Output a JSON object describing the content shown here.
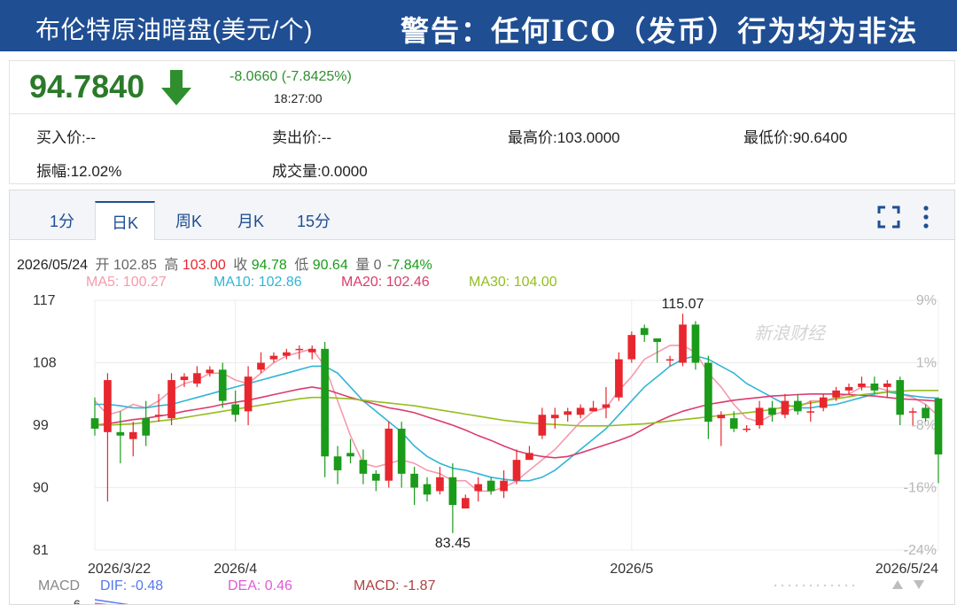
{
  "banner": {
    "title": "布伦特原油暗盘(美元/个)",
    "warning": "警告：任何ICO（发币）行为均为非法"
  },
  "quote": {
    "price": "94.7840",
    "change": "-8.0660 (-7.8425%)",
    "time": "18:27:00",
    "trend_icon": "arrow-down-icon"
  },
  "stats": {
    "bid": "买入价:--",
    "ask": "卖出价:--",
    "high": "最高价:103.0000",
    "low": "最低价:90.6400",
    "amplitude": "振幅:12.02%",
    "volume": "成交量:0.0000"
  },
  "tabs": [
    {
      "label": "1分"
    },
    {
      "label": "日K"
    },
    {
      "label": "周K"
    },
    {
      "label": "月K"
    },
    {
      "label": "15分"
    }
  ],
  "active_tab": "日K",
  "info": {
    "date": "2026/05/24",
    "open_label": "开",
    "open": "102.85",
    "high_label": "高",
    "high": "103.00",
    "close_label": "收",
    "close": "94.78",
    "low_label": "低",
    "low": "90.64",
    "vol_label": "量",
    "vol": "0",
    "pct": "-7.84%"
  },
  "ma": {
    "ma5": "MA5: 100.27",
    "ma10": "MA10: 102.86",
    "ma20": "MA20: 102.46",
    "ma30": "MA30: 104.00"
  },
  "macd": {
    "label": "MACD",
    "dif": "DIF: -0.48",
    "dea": "DEA: 0.46",
    "macd": "MACD: -1.87",
    "axis_top": "6"
  },
  "watermark": "新浪财经",
  "colors": {
    "up": "#e8262e",
    "down": "#1a9b1a",
    "ma5": "#f59aac",
    "ma10": "#31b5d6",
    "ma20": "#dd3b6c",
    "ma30": "#95bd1e",
    "accent": "#1f4e93"
  },
  "chart_data": {
    "type": "candlestick",
    "y_left_ticks": [
      "117",
      "108",
      "99",
      "90",
      "81"
    ],
    "y_left_values": [
      117,
      108,
      99,
      90,
      81
    ],
    "ylim": [
      81,
      117
    ],
    "y_right_ticks": [
      "9%",
      "1%",
      "-8%",
      "-16%",
      "-24%"
    ],
    "x_ticks": [
      {
        "label": "2026/3/22",
        "index": 0
      },
      {
        "label": "2026/4",
        "index": 11
      },
      {
        "label": "2026/5",
        "index": 42
      },
      {
        "label": "2026/5/24",
        "index": 66
      }
    ],
    "annotations": [
      {
        "text": "115.07",
        "index": 46,
        "value": 115.07
      },
      {
        "text": "83.45",
        "index": 28,
        "value": 83.45
      }
    ],
    "candles": [
      [
        100.0,
        98.5,
        103.0,
        97.5
      ],
      [
        98.0,
        105.5,
        106.5,
        88.0
      ],
      [
        98.0,
        97.5,
        101.0,
        93.5
      ],
      [
        97.0,
        98.0,
        99.5,
        94.5
      ],
      [
        100.0,
        97.5,
        102.5,
        96.0
      ],
      [
        100.5,
        100.5,
        103.5,
        99.5
      ],
      [
        100.0,
        105.5,
        106.5,
        99.0
      ],
      [
        105.5,
        106.0,
        106.5,
        104.5
      ],
      [
        105.0,
        106.5,
        107.5,
        104.5
      ],
      [
        106.5,
        107.0,
        107.5,
        106.0
      ],
      [
        107.0,
        102.5,
        108.0,
        101.5
      ],
      [
        102.0,
        100.5,
        104.0,
        99.5
      ],
      [
        101.0,
        106.0,
        107.5,
        99.0
      ],
      [
        107.0,
        108.0,
        109.5,
        106.5
      ],
      [
        108.5,
        109.0,
        109.5,
        108.0
      ],
      [
        109.0,
        109.5,
        110.0,
        108.5
      ],
      [
        110.0,
        110.0,
        110.5,
        108.5
      ],
      [
        109.5,
        110.0,
        110.5,
        108.5
      ],
      [
        110.0,
        94.5,
        111.0,
        91.5
      ],
      [
        94.5,
        92.5,
        96.0,
        90.5
      ],
      [
        95.0,
        94.5,
        97.0,
        93.5
      ],
      [
        94.0,
        92.0,
        95.5,
        90.5
      ],
      [
        92.0,
        91.0,
        92.5,
        89.5
      ],
      [
        91.0,
        98.5,
        99.5,
        90.0
      ],
      [
        98.5,
        92.0,
        99.5,
        90.0
      ],
      [
        92.0,
        90.0,
        93.0,
        87.5
      ],
      [
        90.5,
        89.0,
        91.5,
        88.0
      ],
      [
        89.5,
        91.5,
        93.0,
        89.0
      ],
      [
        91.5,
        87.5,
        93.5,
        83.45
      ],
      [
        87.0,
        88.5,
        89.0,
        87.0
      ],
      [
        89.5,
        90.5,
        91.5,
        88.0
      ],
      [
        91.0,
        89.5,
        91.5,
        89.0
      ],
      [
        89.5,
        91.0,
        92.5,
        88.5
      ],
      [
        91.0,
        94.0,
        95.5,
        90.5
      ],
      [
        94.0,
        95.0,
        96.0,
        94.0
      ],
      [
        97.5,
        100.5,
        101.5,
        97.0
      ],
      [
        100.0,
        100.5,
        101.5,
        98.5
      ],
      [
        100.5,
        101.0,
        101.5,
        99.5
      ],
      [
        100.5,
        101.5,
        102.0,
        100.0
      ],
      [
        101.0,
        101.5,
        102.5,
        101.0
      ],
      [
        101.5,
        102.0,
        104.5,
        100.0
      ],
      [
        103.0,
        108.5,
        109.5,
        102.5
      ],
      [
        108.5,
        112.0,
        112.5,
        108.0
      ],
      [
        113.0,
        112.0,
        113.5,
        111.0
      ],
      [
        111.5,
        111.0,
        111.5,
        108.0
      ],
      [
        108.5,
        108.5,
        109.0,
        107.5
      ],
      [
        108.0,
        113.5,
        115.07,
        107.5
      ],
      [
        113.5,
        108.0,
        114.0,
        107.0
      ],
      [
        108.0,
        99.5,
        109.0,
        97.0
      ],
      [
        100.0,
        100.5,
        101.0,
        96.0
      ],
      [
        100.0,
        98.5,
        101.0,
        98.0
      ],
      [
        98.5,
        98.5,
        99.0,
        98.0
      ],
      [
        99.0,
        101.5,
        102.5,
        98.5
      ],
      [
        101.5,
        100.5,
        102.5,
        99.5
      ],
      [
        100.5,
        102.5,
        103.5,
        100.0
      ],
      [
        102.5,
        101.0,
        103.5,
        100.5
      ],
      [
        101.0,
        101.0,
        102.5,
        99.5
      ],
      [
        101.5,
        103.0,
        103.5,
        101.0
      ],
      [
        103.0,
        104.0,
        104.5,
        102.5
      ],
      [
        104.0,
        104.5,
        105.0,
        103.5
      ],
      [
        104.5,
        105.0,
        106.0,
        104.0
      ],
      [
        105.0,
        104.0,
        106.0,
        103.5
      ],
      [
        104.5,
        105.0,
        105.5,
        103.0
      ],
      [
        105.5,
        100.5,
        106.0,
        99.0
      ],
      [
        101.0,
        101.0,
        101.5,
        99.0
      ],
      [
        101.5,
        100.0,
        102.0,
        99.5
      ],
      [
        102.85,
        94.78,
        103.0,
        90.64
      ]
    ],
    "ma5": [
      102.5,
      100.5,
      101.0,
      102.0,
      101.5,
      102.5,
      104.0,
      105.0,
      105.5,
      106.5,
      106.5,
      105.5,
      105.0,
      106.5,
      108.0,
      109.0,
      109.5,
      110.0,
      107.5,
      102.5,
      97.5,
      93.5,
      93.0,
      93.5,
      94.0,
      93.5,
      92.5,
      92.0,
      91.0,
      91.0,
      89.5,
      89.5,
      90.0,
      91.0,
      92.5,
      94.0,
      95.5,
      97.5,
      99.5,
      101.0,
      101.5,
      104.0,
      106.0,
      108.5,
      109.5,
      110.5,
      110.5,
      109.5,
      106.5,
      104.5,
      102.0,
      100.0,
      99.5,
      100.5,
      101.0,
      101.5,
      102.5,
      102.5,
      103.0,
      103.5,
      104.5,
      104.5,
      104.0,
      103.5,
      103.0,
      102.0,
      100.3
    ],
    "ma10": [
      102.0,
      102.0,
      101.8,
      101.5,
      101.5,
      101.8,
      102.0,
      102.5,
      103.0,
      103.5,
      104.0,
      104.5,
      105.0,
      105.5,
      106.0,
      106.5,
      107.0,
      107.5,
      107.5,
      106.5,
      104.5,
      102.5,
      101.0,
      99.5,
      98.0,
      96.0,
      94.5,
      93.5,
      92.8,
      92.5,
      92.0,
      91.5,
      91.2,
      91.0,
      91.0,
      91.5,
      92.5,
      94.0,
      95.5,
      97.0,
      98.5,
      100.5,
      102.5,
      104.5,
      106.0,
      107.5,
      108.5,
      109.0,
      108.5,
      107.5,
      106.5,
      105.0,
      104.0,
      103.0,
      102.0,
      101.5,
      101.5,
      101.8,
      102.0,
      102.5,
      103.0,
      103.5,
      103.8,
      103.5,
      103.2,
      103.0,
      102.9
    ],
    "ma20": [
      99.0,
      99.2,
      99.5,
      99.8,
      100.0,
      100.3,
      100.6,
      101.0,
      101.3,
      101.6,
      102.0,
      102.3,
      102.6,
      103.0,
      103.4,
      103.8,
      104.2,
      104.5,
      104.2,
      103.6,
      103.0,
      102.5,
      102.0,
      101.5,
      101.2,
      100.8,
      100.2,
      99.6,
      99.0,
      98.3,
      97.5,
      96.8,
      96.0,
      95.3,
      94.8,
      94.5,
      94.3,
      94.5,
      95.0,
      95.6,
      96.2,
      96.8,
      97.5,
      98.5,
      99.5,
      100.3,
      101.0,
      101.5,
      102.0,
      102.3,
      102.6,
      102.8,
      103.0,
      103.2,
      103.3,
      103.4,
      103.5,
      103.5,
      103.5,
      103.4,
      103.3,
      103.2,
      103.0,
      102.8,
      102.7,
      102.6,
      102.46
    ],
    "ma30": [
      99.0,
      99.0,
      99.1,
      99.2,
      99.4,
      99.6,
      99.8,
      100.1,
      100.4,
      100.7,
      101.0,
      101.3,
      101.6,
      101.9,
      102.2,
      102.5,
      102.8,
      103.0,
      103.0,
      102.9,
      102.8,
      102.6,
      102.4,
      102.2,
      102.0,
      101.8,
      101.5,
      101.2,
      100.9,
      100.6,
      100.3,
      100.0,
      99.7,
      99.5,
      99.3,
      99.2,
      99.1,
      99.0,
      98.9,
      98.9,
      98.9,
      99.0,
      99.1,
      99.2,
      99.4,
      99.6,
      99.8,
      100.0,
      100.2,
      100.4,
      100.6,
      100.8,
      101.0,
      101.3,
      101.6,
      101.9,
      102.2,
      102.5,
      102.8,
      103.1,
      103.4,
      103.6,
      103.8,
      103.9,
      104.0,
      104.0,
      104.0
    ],
    "macd_dif_start": [
      [
        6,
        0
      ],
      [
        20,
        3
      ]
    ]
  }
}
